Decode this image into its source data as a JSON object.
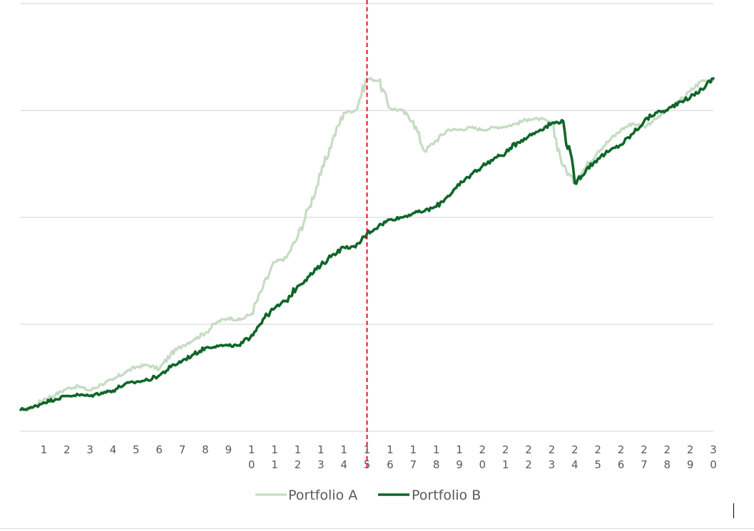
{
  "chart_data": {
    "type": "line",
    "x": [
      1,
      2,
      3,
      4,
      5,
      6,
      7,
      8,
      9,
      10,
      11,
      12,
      13,
      14,
      15,
      16,
      17,
      18,
      19,
      20,
      21,
      22,
      23,
      24,
      25,
      26,
      27,
      28,
      29,
      30
    ],
    "x_tick_labels": [
      "1",
      "2",
      "3",
      "4",
      "5",
      "6",
      "7",
      "8",
      "9",
      "10",
      "11",
      "12",
      "13",
      "14",
      "15",
      "16",
      "17",
      "18",
      "19",
      "20",
      "21",
      "22",
      "23",
      "24",
      "25",
      "26",
      "27",
      "28",
      "29",
      "30"
    ],
    "xlim": [
      0,
      30
    ],
    "ylim": [
      0,
      4
    ],
    "y_gridlines": [
      0,
      1,
      2,
      3,
      4
    ],
    "y_tick_labels_visible": false,
    "grid": true,
    "series": [
      {
        "name": "Portfolio A",
        "color": "#c5dcc2",
        "x": [
          0,
          0.5,
          1,
          1.5,
          2,
          2.5,
          3,
          3.5,
          4,
          4.5,
          5,
          5.5,
          6,
          6.5,
          7,
          7.5,
          8,
          8.5,
          9,
          9.5,
          10,
          10.5,
          11,
          11.5,
          12,
          12.5,
          13,
          13.5,
          14,
          14.5,
          15,
          15.5,
          16,
          16.5,
          17,
          17.5,
          18,
          18.5,
          19,
          19.5,
          20,
          20.5,
          21,
          21.5,
          22,
          22.5,
          23,
          23.5,
          24,
          24.5,
          25,
          25.5,
          26,
          26.5,
          27,
          27.5,
          28,
          28.5,
          29,
          29.5,
          30
        ],
        "values": [
          0.2,
          0.22,
          0.3,
          0.34,
          0.4,
          0.42,
          0.38,
          0.44,
          0.48,
          0.55,
          0.6,
          0.62,
          0.58,
          0.72,
          0.8,
          0.86,
          0.92,
          1.02,
          1.06,
          1.04,
          1.1,
          1.35,
          1.58,
          1.62,
          1.82,
          2.1,
          2.4,
          2.72,
          2.98,
          3.0,
          3.3,
          3.28,
          3.02,
          3.0,
          2.9,
          2.62,
          2.72,
          2.82,
          2.82,
          2.84,
          2.82,
          2.84,
          2.85,
          2.88,
          2.92,
          2.92,
          2.88,
          2.48,
          2.32,
          2.48,
          2.62,
          2.72,
          2.82,
          2.88,
          2.85,
          2.92,
          3.0,
          3.08,
          3.18,
          3.28,
          3.28
        ]
      },
      {
        "name": "Portfolio B",
        "color": "#0f6629",
        "x": [
          0,
          0.5,
          1,
          1.5,
          2,
          2.5,
          3,
          3.5,
          4,
          4.5,
          5,
          5.5,
          6,
          6.5,
          7,
          7.5,
          8,
          8.5,
          9,
          9.5,
          10,
          10.5,
          11,
          11.5,
          12,
          12.5,
          13,
          13.5,
          14,
          14.5,
          15,
          15.5,
          16,
          16.5,
          17,
          17.5,
          18,
          18.5,
          19,
          19.5,
          20,
          20.5,
          21,
          21.5,
          22,
          22.5,
          23,
          23.5,
          24,
          24.5,
          25,
          25.5,
          26,
          26.5,
          27,
          27.5,
          28,
          28.5,
          29,
          29.5,
          30
        ],
        "values": [
          0.2,
          0.22,
          0.27,
          0.3,
          0.33,
          0.34,
          0.33,
          0.36,
          0.38,
          0.44,
          0.46,
          0.48,
          0.52,
          0.6,
          0.66,
          0.72,
          0.78,
          0.8,
          0.8,
          0.8,
          0.9,
          1.05,
          1.15,
          1.22,
          1.36,
          1.45,
          1.55,
          1.65,
          1.72,
          1.72,
          1.85,
          1.92,
          1.98,
          2.0,
          2.04,
          2.06,
          2.1,
          2.2,
          2.3,
          2.4,
          2.48,
          2.55,
          2.6,
          2.7,
          2.76,
          2.82,
          2.88,
          2.9,
          2.32,
          2.45,
          2.55,
          2.62,
          2.68,
          2.78,
          2.9,
          2.98,
          3.0,
          3.08,
          3.12,
          3.2,
          3.3
        ]
      }
    ],
    "annotations": [
      {
        "type": "vertical-dashed-line",
        "x": 15,
        "color": "#e00000"
      }
    ],
    "legend_placement": "bottom-center"
  }
}
